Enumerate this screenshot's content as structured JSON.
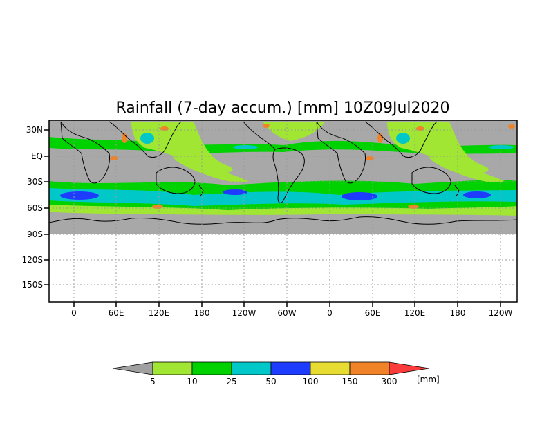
{
  "title": "Rainfall (7-day accum.) [mm] 10Z09Jul2020",
  "y_ticks": [
    "30N",
    "EQ",
    "30S",
    "60S",
    "90S",
    "120S",
    "150S"
  ],
  "x_ticks": [
    "0",
    "60E",
    "120E",
    "180",
    "120W",
    "60W",
    "0",
    "60E",
    "120E",
    "180",
    "120W"
  ],
  "colorbar": {
    "unit": "[mm]",
    "levels": [
      "5",
      "10",
      "25",
      "50",
      "100",
      "150",
      "300"
    ],
    "colors": [
      "#a0a0a0",
      "#a0e632",
      "#00d200",
      "#00c8c8",
      "#1e3cff",
      "#e6dc32",
      "#f08228",
      "#fa3c3c"
    ]
  },
  "colors": {
    "land_gray": "#a8a8a8",
    "light_green": "#a0e632",
    "green": "#00d200",
    "cyan": "#00c8c8",
    "blue": "#1e3cff",
    "yellow": "#e6dc32",
    "orange": "#f08228",
    "red": "#fa3c3c"
  }
}
